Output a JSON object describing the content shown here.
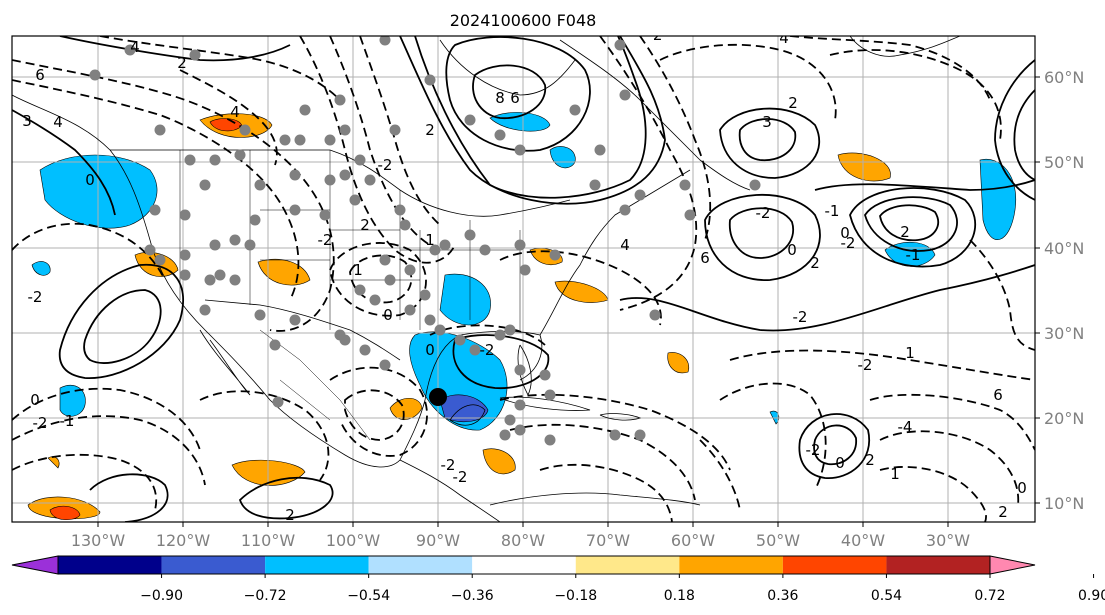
{
  "title": "2024100600 F048",
  "longitude_labels": [
    "130°W",
    "120°W",
    "110°W",
    "100°W",
    "90°W",
    "80°W",
    "70°W",
    "60°W",
    "50°W",
    "40°W",
    "30°W"
  ],
  "latitude_labels": [
    "60°N",
    "50°N",
    "40°N",
    "30°N",
    "20°N",
    "10°N"
  ],
  "colorbar": {
    "labels": [
      "−0.90",
      "−0.72",
      "−0.54",
      "−0.36",
      "−0.18",
      "0.18",
      "0.36",
      "0.54",
      "0.72",
      "0.90"
    ],
    "colors": [
      "#9b30d9",
      "#00008b",
      "#3a5bd0",
      "#00bfff",
      "#b0e0ff",
      "#ffffff",
      "#ffe88a",
      "#ffa500",
      "#ff4500",
      "#b22222",
      "#ff88b0"
    ]
  },
  "contour_labels": [
    "4",
    "3",
    "2",
    "6",
    "4",
    "3",
    "0",
    "-2",
    "8",
    "6",
    "2",
    "4",
    "-2",
    "3",
    "4",
    "2",
    "-2",
    "0",
    "-1",
    "-2",
    "1",
    "6",
    "-4",
    "0",
    "-2",
    "-1",
    "0",
    "-2",
    "2",
    "-2",
    "-1",
    "-2",
    "2",
    "0",
    "6",
    "-2",
    "4",
    "2",
    "1",
    "0",
    "2",
    "-2",
    "-2",
    "0",
    "-2",
    "1",
    "-2",
    "2",
    "1",
    "0",
    "2"
  ],
  "markers": {
    "grey_color": "#808080",
    "black_color": "#000000"
  }
}
